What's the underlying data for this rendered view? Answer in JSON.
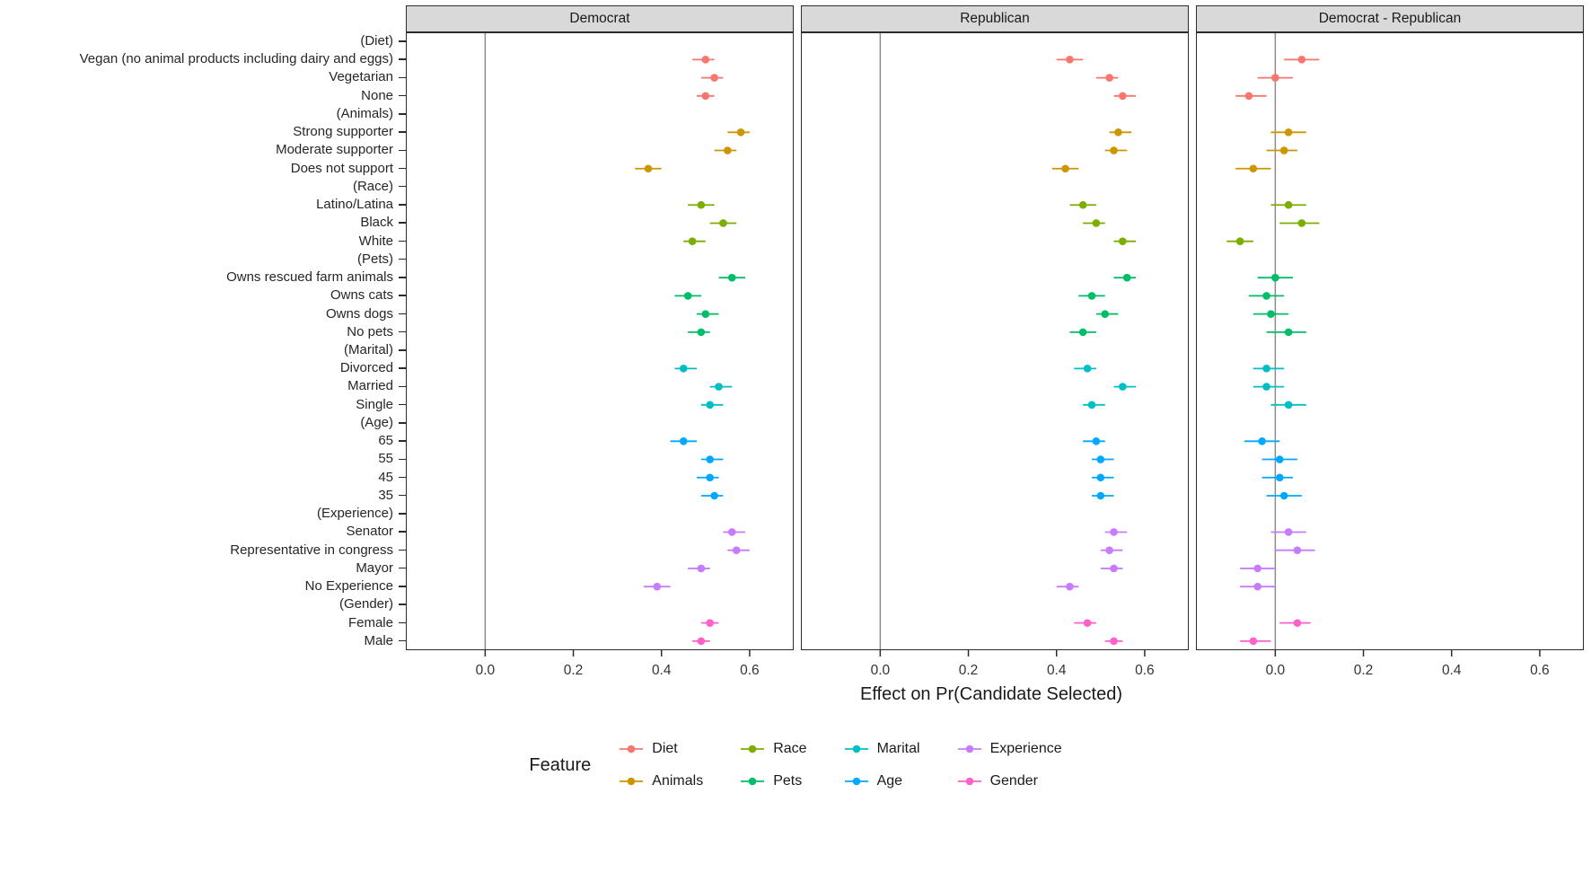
{
  "chart_data": {
    "type": "scatter",
    "subtype": "dot-and-whisker, faceted",
    "xlabel": "Effect on Pr(Candidate Selected)",
    "xticks": [
      0.0,
      0.2,
      0.4,
      0.6
    ],
    "xlim": [
      -0.18,
      0.7
    ],
    "grid": false,
    "legend_title": "Feature",
    "legend_position": "bottom",
    "facets": [
      {
        "key": "dem",
        "label": "Democrat"
      },
      {
        "key": "rep",
        "label": "Republican"
      },
      {
        "key": "diff",
        "label": "Democrat - Republican"
      }
    ],
    "features": [
      {
        "name": "Diet",
        "color": "#F8766D"
      },
      {
        "name": "Animals",
        "color": "#CD9600"
      },
      {
        "name": "Race",
        "color": "#7CAE00"
      },
      {
        "name": "Pets",
        "color": "#00BE67"
      },
      {
        "name": "Marital",
        "color": "#00BFC4"
      },
      {
        "name": "Age",
        "color": "#00A9FF"
      },
      {
        "name": "Experience",
        "color": "#C77CFF"
      },
      {
        "name": "Gender",
        "color": "#FF61CC"
      }
    ],
    "rows": [
      {
        "label": "(Diet)",
        "feature": null
      },
      {
        "label": "Vegan (no animal products including dairy and eggs)",
        "feature": "Diet",
        "v": {
          "dem": [
            0.5,
            0.47,
            0.52
          ],
          "rep": [
            0.43,
            0.4,
            0.46
          ],
          "diff": [
            0.06,
            0.02,
            0.1
          ]
        }
      },
      {
        "label": "Vegetarian",
        "feature": "Diet",
        "v": {
          "dem": [
            0.52,
            0.49,
            0.54
          ],
          "rep": [
            0.52,
            0.49,
            0.54
          ],
          "diff": [
            0.0,
            -0.04,
            0.04
          ]
        }
      },
      {
        "label": "None",
        "feature": "Diet",
        "v": {
          "dem": [
            0.5,
            0.48,
            0.52
          ],
          "rep": [
            0.55,
            0.53,
            0.58
          ],
          "diff": [
            -0.06,
            -0.09,
            -0.02
          ]
        }
      },
      {
        "label": "(Animals)",
        "feature": null
      },
      {
        "label": "Strong supporter",
        "feature": "Animals",
        "v": {
          "dem": [
            0.58,
            0.55,
            0.6
          ],
          "rep": [
            0.54,
            0.52,
            0.57
          ],
          "diff": [
            0.03,
            -0.01,
            0.07
          ]
        }
      },
      {
        "label": "Moderate supporter",
        "feature": "Animals",
        "v": {
          "dem": [
            0.55,
            0.52,
            0.57
          ],
          "rep": [
            0.53,
            0.51,
            0.56
          ],
          "diff": [
            0.02,
            -0.02,
            0.05
          ]
        }
      },
      {
        "label": "Does not support",
        "feature": "Animals",
        "v": {
          "dem": [
            0.37,
            0.34,
            0.4
          ],
          "rep": [
            0.42,
            0.39,
            0.45
          ],
          "diff": [
            -0.05,
            -0.09,
            -0.01
          ]
        }
      },
      {
        "label": "(Race)",
        "feature": null
      },
      {
        "label": "Latino/Latina",
        "feature": "Race",
        "v": {
          "dem": [
            0.49,
            0.46,
            0.52
          ],
          "rep": [
            0.46,
            0.43,
            0.49
          ],
          "diff": [
            0.03,
            -0.01,
            0.07
          ]
        }
      },
      {
        "label": "Black",
        "feature": "Race",
        "v": {
          "dem": [
            0.54,
            0.51,
            0.57
          ],
          "rep": [
            0.49,
            0.46,
            0.51
          ],
          "diff": [
            0.06,
            0.01,
            0.1
          ]
        }
      },
      {
        "label": "White",
        "feature": "Race",
        "v": {
          "dem": [
            0.47,
            0.45,
            0.5
          ],
          "rep": [
            0.55,
            0.53,
            0.58
          ],
          "diff": [
            -0.08,
            -0.11,
            -0.05
          ]
        }
      },
      {
        "label": "(Pets)",
        "feature": null
      },
      {
        "label": "Owns rescued farm animals",
        "feature": "Pets",
        "v": {
          "dem": [
            0.56,
            0.53,
            0.59
          ],
          "rep": [
            0.56,
            0.53,
            0.58
          ],
          "diff": [
            0.0,
            -0.04,
            0.04
          ]
        }
      },
      {
        "label": "Owns cats",
        "feature": "Pets",
        "v": {
          "dem": [
            0.46,
            0.43,
            0.49
          ],
          "rep": [
            0.48,
            0.45,
            0.51
          ],
          "diff": [
            -0.02,
            -0.06,
            0.02
          ]
        }
      },
      {
        "label": "Owns dogs",
        "feature": "Pets",
        "v": {
          "dem": [
            0.5,
            0.48,
            0.53
          ],
          "rep": [
            0.51,
            0.49,
            0.54
          ],
          "diff": [
            -0.01,
            -0.05,
            0.03
          ]
        }
      },
      {
        "label": "No pets",
        "feature": "Pets",
        "v": {
          "dem": [
            0.49,
            0.46,
            0.51
          ],
          "rep": [
            0.46,
            0.43,
            0.49
          ],
          "diff": [
            0.03,
            -0.02,
            0.07
          ]
        }
      },
      {
        "label": "(Marital)",
        "feature": null
      },
      {
        "label": "Divorced",
        "feature": "Marital",
        "v": {
          "dem": [
            0.45,
            0.43,
            0.48
          ],
          "rep": [
            0.47,
            0.44,
            0.49
          ],
          "diff": [
            -0.02,
            -0.05,
            0.02
          ]
        }
      },
      {
        "label": "Married",
        "feature": "Marital",
        "v": {
          "dem": [
            0.53,
            0.51,
            0.56
          ],
          "rep": [
            0.55,
            0.53,
            0.58
          ],
          "diff": [
            -0.02,
            -0.05,
            0.02
          ]
        }
      },
      {
        "label": "Single",
        "feature": "Marital",
        "v": {
          "dem": [
            0.51,
            0.49,
            0.54
          ],
          "rep": [
            0.48,
            0.46,
            0.51
          ],
          "diff": [
            0.03,
            -0.01,
            0.07
          ]
        }
      },
      {
        "label": "(Age)",
        "feature": null
      },
      {
        "label": "65",
        "feature": "Age",
        "v": {
          "dem": [
            0.45,
            0.42,
            0.48
          ],
          "rep": [
            0.49,
            0.46,
            0.51
          ],
          "diff": [
            -0.03,
            -0.07,
            0.01
          ]
        }
      },
      {
        "label": "55",
        "feature": "Age",
        "v": {
          "dem": [
            0.51,
            0.49,
            0.54
          ],
          "rep": [
            0.5,
            0.48,
            0.53
          ],
          "diff": [
            0.01,
            -0.03,
            0.05
          ]
        }
      },
      {
        "label": "45",
        "feature": "Age",
        "v": {
          "dem": [
            0.51,
            0.48,
            0.53
          ],
          "rep": [
            0.5,
            0.48,
            0.53
          ],
          "diff": [
            0.01,
            -0.03,
            0.04
          ]
        }
      },
      {
        "label": "35",
        "feature": "Age",
        "v": {
          "dem": [
            0.52,
            0.49,
            0.54
          ],
          "rep": [
            0.5,
            0.48,
            0.53
          ],
          "diff": [
            0.02,
            -0.02,
            0.06
          ]
        }
      },
      {
        "label": "(Experience)",
        "feature": null
      },
      {
        "label": "Senator",
        "feature": "Experience",
        "v": {
          "dem": [
            0.56,
            0.54,
            0.59
          ],
          "rep": [
            0.53,
            0.51,
            0.56
          ],
          "diff": [
            0.03,
            -0.01,
            0.07
          ]
        }
      },
      {
        "label": "Representative in congress",
        "feature": "Experience",
        "v": {
          "dem": [
            0.57,
            0.55,
            0.6
          ],
          "rep": [
            0.52,
            0.5,
            0.55
          ],
          "diff": [
            0.05,
            0.0,
            0.09
          ]
        }
      },
      {
        "label": "Mayor",
        "feature": "Experience",
        "v": {
          "dem": [
            0.49,
            0.46,
            0.51
          ],
          "rep": [
            0.53,
            0.5,
            0.55
          ],
          "diff": [
            -0.04,
            -0.08,
            0.0
          ]
        }
      },
      {
        "label": "No Experience",
        "feature": "Experience",
        "v": {
          "dem": [
            0.39,
            0.36,
            0.42
          ],
          "rep": [
            0.43,
            0.4,
            0.45
          ],
          "diff": [
            -0.04,
            -0.08,
            0.0
          ]
        }
      },
      {
        "label": "(Gender)",
        "feature": null
      },
      {
        "label": "Female",
        "feature": "Gender",
        "v": {
          "dem": [
            0.51,
            0.49,
            0.53
          ],
          "rep": [
            0.47,
            0.44,
            0.49
          ],
          "diff": [
            0.05,
            0.01,
            0.08
          ]
        }
      },
      {
        "label": "Male",
        "feature": "Gender",
        "v": {
          "dem": [
            0.49,
            0.47,
            0.51
          ],
          "rep": [
            0.53,
            0.51,
            0.55
          ],
          "diff": [
            -0.05,
            -0.08,
            -0.01
          ]
        }
      }
    ]
  }
}
